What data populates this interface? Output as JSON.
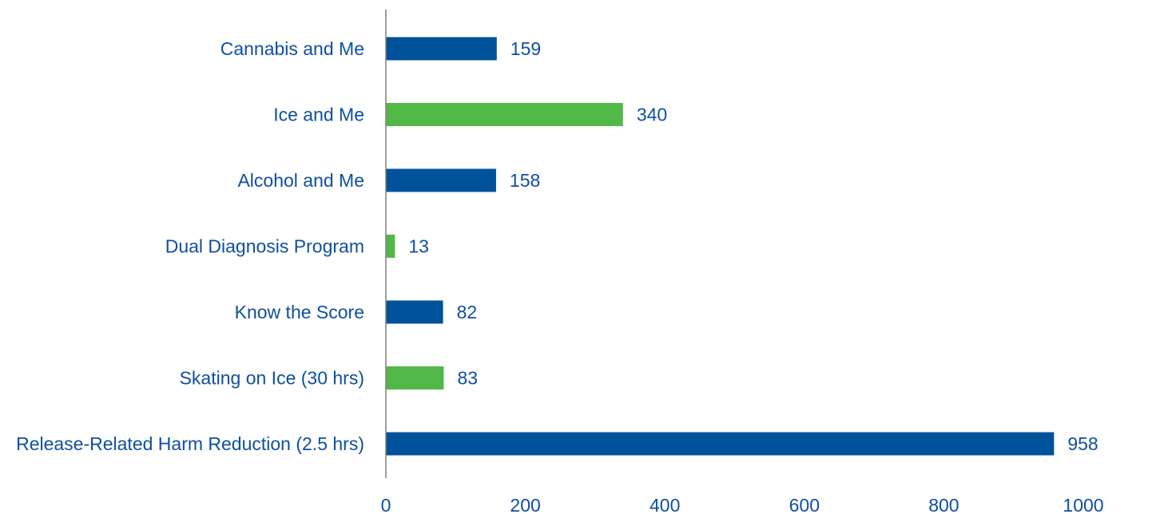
{
  "chart_data": {
    "type": "bar",
    "orientation": "horizontal",
    "categories": [
      "Cannabis and Me",
      "Ice and Me",
      "Alcohol and Me",
      "Dual Diagnosis Program",
      "Know the Score",
      "Skating on Ice (30 hrs)",
      "Release-Related Harm Reduction (2.5 hrs)"
    ],
    "values": [
      159,
      340,
      158,
      13,
      82,
      83,
      958
    ],
    "bar_colors": [
      "#00529B",
      "#52B848",
      "#00529B",
      "#52B848",
      "#00529B",
      "#52B848",
      "#00529B"
    ],
    "xlim": [
      0,
      1000
    ],
    "xticks": [
      0,
      200,
      400,
      600,
      800,
      1000
    ],
    "tick_labels": [
      "0",
      "200",
      "400",
      "600",
      "800",
      "1000"
    ],
    "data_labels": [
      "159",
      "340",
      "158",
      "13",
      "82",
      "83",
      "958"
    ],
    "title": "",
    "xlabel": "",
    "ylabel": "",
    "grid": false,
    "legend": "none",
    "text_color": "#0F4FA0",
    "axis_color": "#7F7F7F"
  }
}
